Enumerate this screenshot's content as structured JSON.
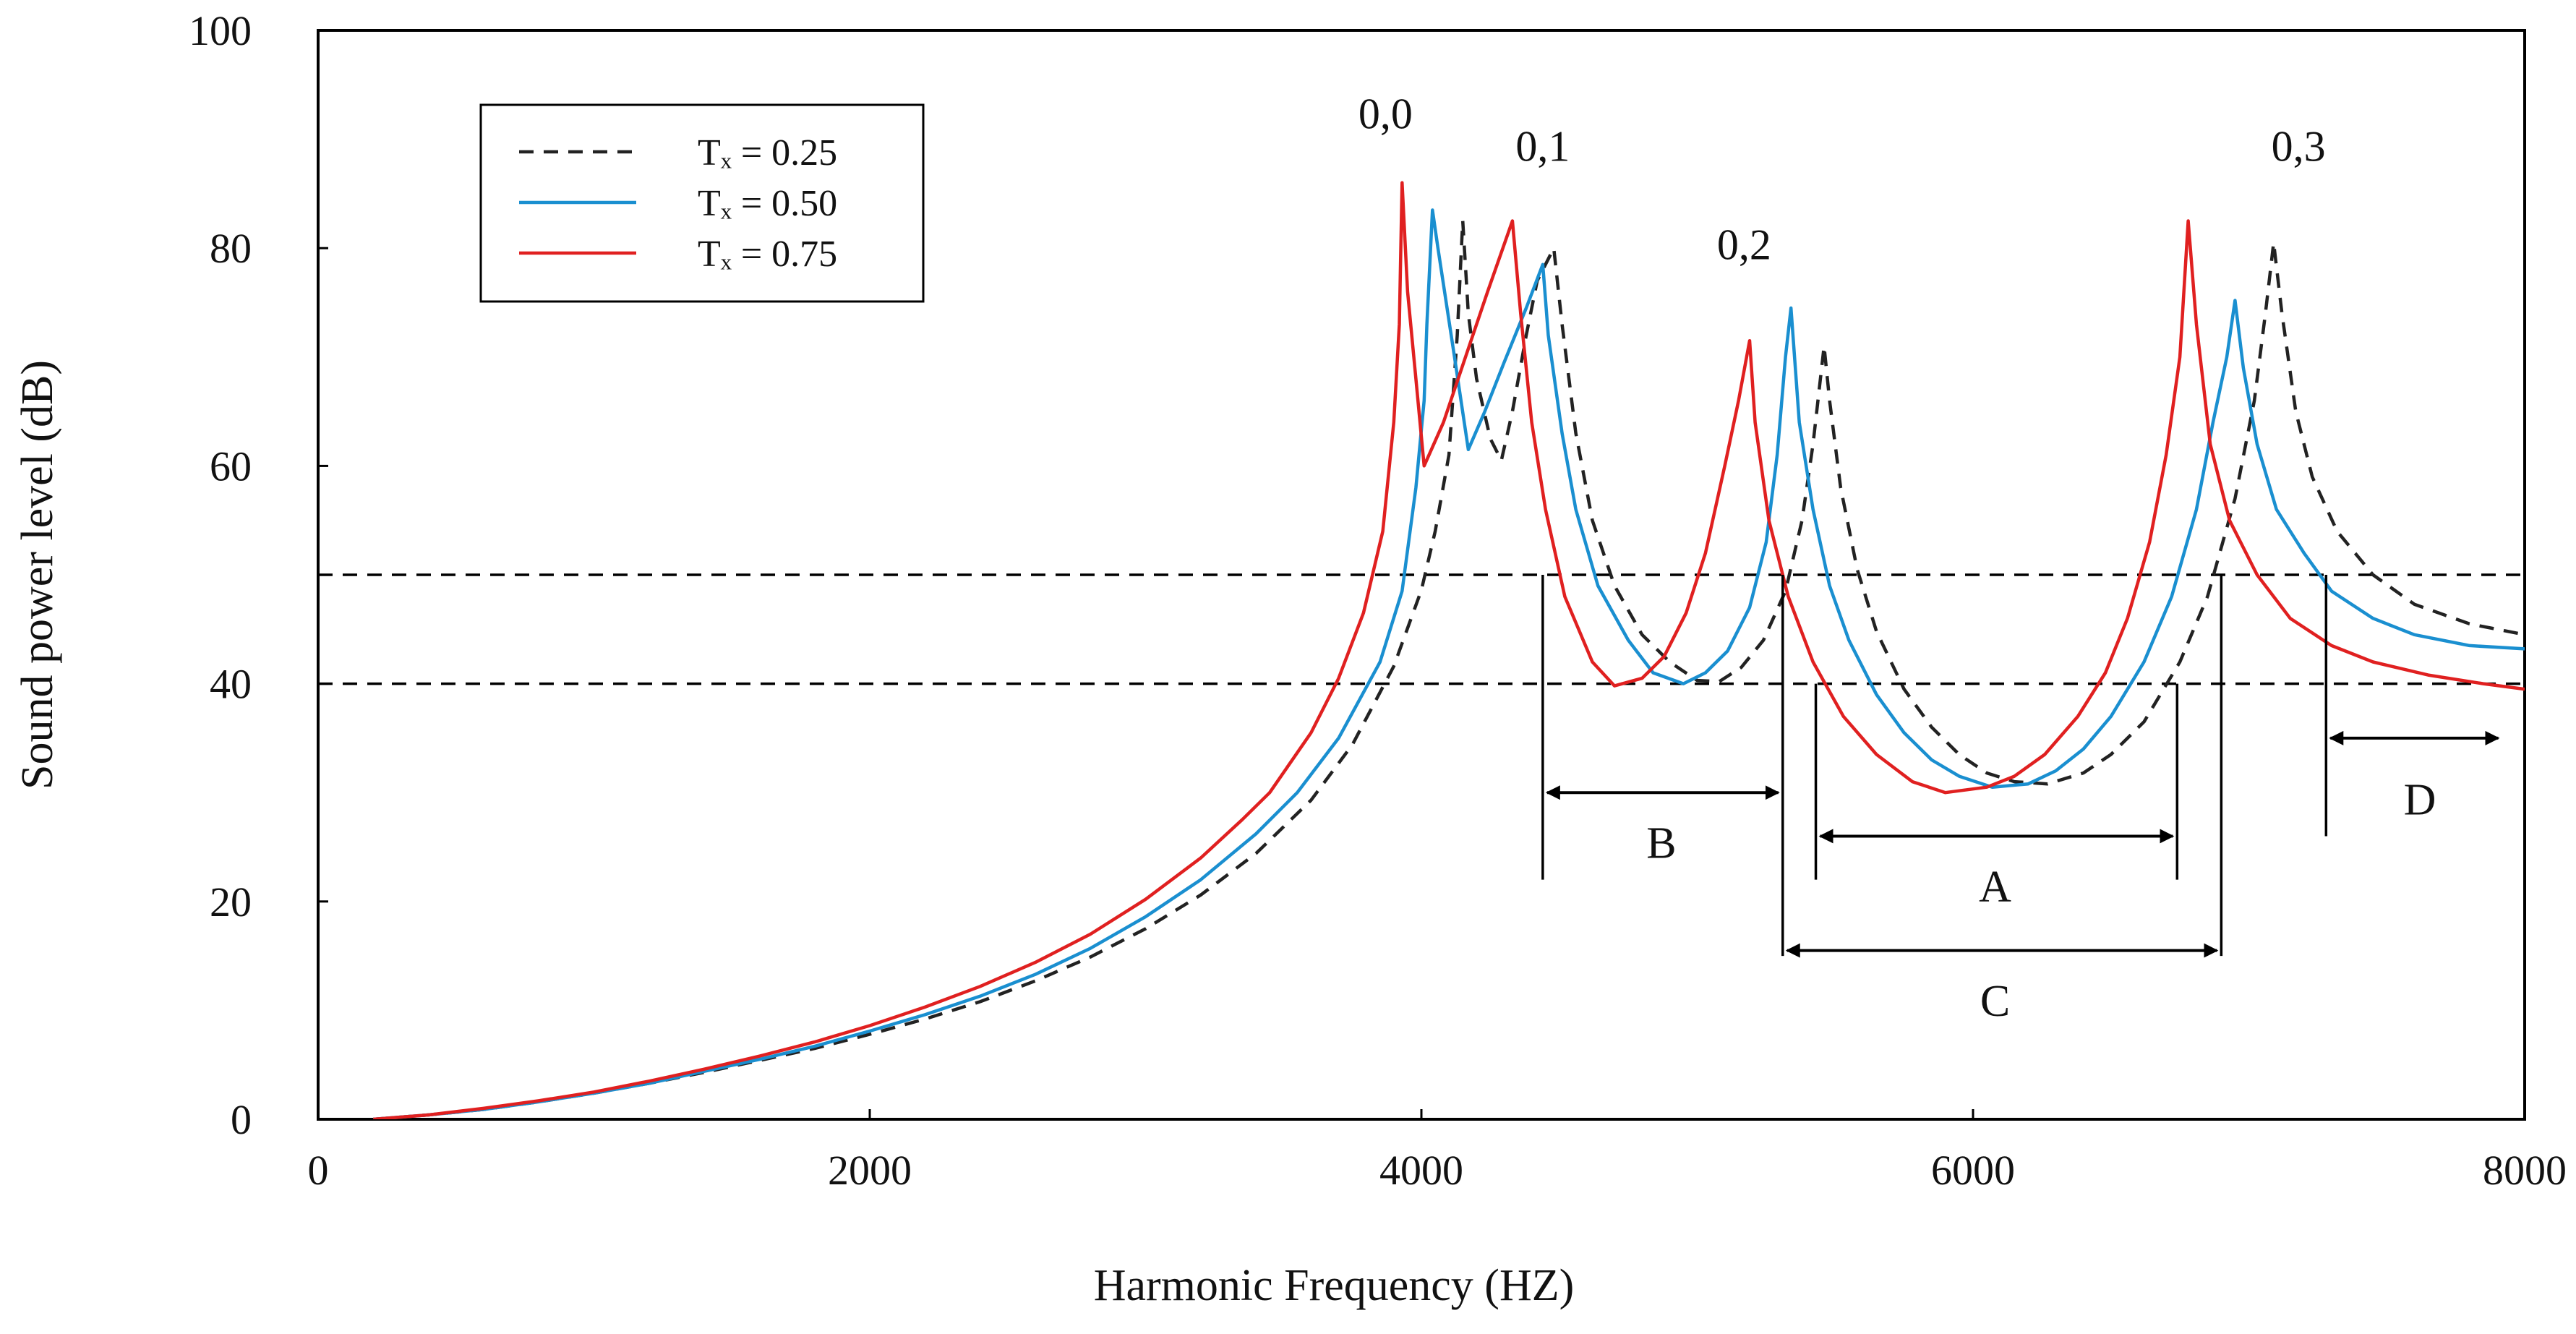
{
  "chart_data": {
    "type": "line",
    "title": "",
    "xlabel": "Harmonic Frequency (HZ)",
    "ylabel": "Sound power level (dB)",
    "xlim": [
      0,
      8000
    ],
    "ylim": [
      0,
      100
    ],
    "x_ticks": [
      0,
      2000,
      4000,
      6000,
      8000
    ],
    "y_ticks": [
      0,
      20,
      40,
      60,
      80,
      100
    ],
    "x_tick_labels": [
      "0",
      "2000",
      "4000",
      "6000",
      "8000"
    ],
    "y_tick_labels": [
      "0",
      "20",
      "40",
      "60",
      "80",
      "100"
    ],
    "grid": false,
    "legend_position": "top-left",
    "series": [
      {
        "name": "Tx = 0.25",
        "legend_label": "Tₓ = 0.25",
        "color": "#222222",
        "style": "dashed",
        "points": [
          [
            200,
            0
          ],
          [
            400,
            0.4
          ],
          [
            600,
            0.9
          ],
          [
            800,
            1.6
          ],
          [
            1000,
            2.4
          ],
          [
            1200,
            3.3
          ],
          [
            1400,
            4.3
          ],
          [
            1600,
            5.4
          ],
          [
            1800,
            6.5
          ],
          [
            2000,
            7.8
          ],
          [
            2200,
            9.2
          ],
          [
            2400,
            10.8
          ],
          [
            2600,
            12.7
          ],
          [
            2800,
            14.9
          ],
          [
            3000,
            17.5
          ],
          [
            3200,
            20.6
          ],
          [
            3400,
            24.4
          ],
          [
            3600,
            29.3
          ],
          [
            3750,
            34.4
          ],
          [
            3900,
            41.6
          ],
          [
            4000,
            48.6
          ],
          [
            4050,
            54
          ],
          [
            4100,
            61
          ],
          [
            4130,
            72
          ],
          [
            4150,
            82.5
          ],
          [
            4170,
            74
          ],
          [
            4200,
            68
          ],
          [
            4250,
            62.5
          ],
          [
            4290,
            60.5
          ],
          [
            4330,
            65
          ],
          [
            4380,
            72
          ],
          [
            4420,
            77
          ],
          [
            4480,
            80
          ],
          [
            4510,
            73
          ],
          [
            4560,
            63
          ],
          [
            4620,
            55
          ],
          [
            4700,
            49
          ],
          [
            4800,
            44.5
          ],
          [
            4900,
            42
          ],
          [
            5000,
            40.3
          ],
          [
            5080,
            40.2
          ],
          [
            5160,
            41.5
          ],
          [
            5240,
            44
          ],
          [
            5320,
            48.5
          ],
          [
            5380,
            55
          ],
          [
            5420,
            62
          ],
          [
            5460,
            71
          ],
          [
            5480,
            66
          ],
          [
            5520,
            58
          ],
          [
            5580,
            50.5
          ],
          [
            5650,
            44.8
          ],
          [
            5750,
            39.5
          ],
          [
            5850,
            36
          ],
          [
            5950,
            33.5
          ],
          [
            6050,
            31.8
          ],
          [
            6150,
            31
          ],
          [
            6270,
            30.8
          ],
          [
            6400,
            31.8
          ],
          [
            6500,
            33.5
          ],
          [
            6620,
            36.5
          ],
          [
            6750,
            42
          ],
          [
            6850,
            48
          ],
          [
            6950,
            57
          ],
          [
            7020,
            66
          ],
          [
            7060,
            74
          ],
          [
            7090,
            80.5
          ],
          [
            7120,
            74
          ],
          [
            7170,
            65
          ],
          [
            7230,
            59
          ],
          [
            7320,
            54
          ],
          [
            7450,
            50
          ],
          [
            7600,
            47.3
          ],
          [
            7800,
            45.5
          ],
          [
            8000,
            44.5
          ]
        ]
      },
      {
        "name": "Tx = 0.50",
        "legend_label": "Tₓ = 0.50",
        "color": "#1a8fd0",
        "style": "solid",
        "points": [
          [
            200,
            0
          ],
          [
            400,
            0.4
          ],
          [
            600,
            0.9
          ],
          [
            800,
            1.6
          ],
          [
            1000,
            2.4
          ],
          [
            1200,
            3.3
          ],
          [
            1400,
            4.4
          ],
          [
            1600,
            5.5
          ],
          [
            1800,
            6.7
          ],
          [
            2000,
            8.1
          ],
          [
            2200,
            9.6
          ],
          [
            2400,
            11.3
          ],
          [
            2600,
            13.3
          ],
          [
            2800,
            15.7
          ],
          [
            3000,
            18.6
          ],
          [
            3200,
            22
          ],
          [
            3400,
            26.2
          ],
          [
            3550,
            30
          ],
          [
            3700,
            35
          ],
          [
            3850,
            42
          ],
          [
            3930,
            48.5
          ],
          [
            3980,
            58
          ],
          [
            4010,
            66
          ],
          [
            4020,
            73
          ],
          [
            4040,
            83.5
          ],
          [
            4060,
            80
          ],
          [
            4120,
            70
          ],
          [
            4170,
            61.5
          ],
          [
            4230,
            65
          ],
          [
            4300,
            69.5
          ],
          [
            4380,
            74.5
          ],
          [
            4440,
            78.5
          ],
          [
            4460,
            72
          ],
          [
            4510,
            63
          ],
          [
            4560,
            56
          ],
          [
            4640,
            49
          ],
          [
            4750,
            44
          ],
          [
            4840,
            41
          ],
          [
            4950,
            40
          ],
          [
            5030,
            41
          ],
          [
            5110,
            43
          ],
          [
            5190,
            47
          ],
          [
            5250,
            53
          ],
          [
            5290,
            61
          ],
          [
            5320,
            70
          ],
          [
            5340,
            74.5
          ],
          [
            5370,
            64
          ],
          [
            5420,
            56
          ],
          [
            5480,
            49
          ],
          [
            5550,
            44
          ],
          [
            5650,
            39
          ],
          [
            5750,
            35.5
          ],
          [
            5850,
            33
          ],
          [
            5950,
            31.5
          ],
          [
            6070,
            30.5
          ],
          [
            6200,
            30.8
          ],
          [
            6300,
            32
          ],
          [
            6400,
            34
          ],
          [
            6500,
            37
          ],
          [
            6620,
            42
          ],
          [
            6720,
            48
          ],
          [
            6810,
            56
          ],
          [
            6870,
            64
          ],
          [
            6920,
            70
          ],
          [
            6950,
            75.2
          ],
          [
            6980,
            69
          ],
          [
            7030,
            62
          ],
          [
            7100,
            56
          ],
          [
            7200,
            52
          ],
          [
            7300,
            48.5
          ],
          [
            7450,
            46
          ],
          [
            7600,
            44.5
          ],
          [
            7800,
            43.5
          ],
          [
            8000,
            43.2
          ]
        ]
      },
      {
        "name": "Tx = 0.75",
        "legend_label": "Tₓ = 0.75",
        "color": "#e02020",
        "style": "solid",
        "points": [
          [
            200,
            0
          ],
          [
            400,
            0.4
          ],
          [
            600,
            1
          ],
          [
            800,
            1.7
          ],
          [
            1000,
            2.5
          ],
          [
            1200,
            3.5
          ],
          [
            1400,
            4.6
          ],
          [
            1600,
            5.8
          ],
          [
            1800,
            7.1
          ],
          [
            2000,
            8.6
          ],
          [
            2200,
            10.3
          ],
          [
            2400,
            12.2
          ],
          [
            2600,
            14.4
          ],
          [
            2800,
            17
          ],
          [
            3000,
            20.2
          ],
          [
            3200,
            24
          ],
          [
            3350,
            27.5
          ],
          [
            3450,
            30
          ],
          [
            3600,
            35.5
          ],
          [
            3700,
            40.5
          ],
          [
            3790,
            46.5
          ],
          [
            3860,
            54
          ],
          [
            3900,
            64
          ],
          [
            3920,
            73
          ],
          [
            3930,
            86
          ],
          [
            3950,
            76
          ],
          [
            3980,
            68
          ],
          [
            4010,
            60
          ],
          [
            4080,
            64
          ],
          [
            4160,
            70
          ],
          [
            4240,
            76
          ],
          [
            4330,
            82.5
          ],
          [
            4360,
            74
          ],
          [
            4400,
            64
          ],
          [
            4450,
            56
          ],
          [
            4520,
            48
          ],
          [
            4620,
            42
          ],
          [
            4700,
            39.8
          ],
          [
            4800,
            40.5
          ],
          [
            4880,
            42.5
          ],
          [
            4960,
            46.5
          ],
          [
            5030,
            52
          ],
          [
            5100,
            60
          ],
          [
            5150,
            66
          ],
          [
            5190,
            71.5
          ],
          [
            5210,
            64
          ],
          [
            5260,
            55
          ],
          [
            5330,
            48
          ],
          [
            5420,
            42
          ],
          [
            5530,
            37
          ],
          [
            5650,
            33.5
          ],
          [
            5780,
            31
          ],
          [
            5900,
            30
          ],
          [
            6050,
            30.5
          ],
          [
            6150,
            31.5
          ],
          [
            6260,
            33.5
          ],
          [
            6380,
            37
          ],
          [
            6480,
            41
          ],
          [
            6560,
            46
          ],
          [
            6640,
            53
          ],
          [
            6700,
            61
          ],
          [
            6750,
            70
          ],
          [
            6780,
            82.5
          ],
          [
            6810,
            73
          ],
          [
            6860,
            62
          ],
          [
            6930,
            55
          ],
          [
            7030,
            50
          ],
          [
            7150,
            46
          ],
          [
            7300,
            43.5
          ],
          [
            7450,
            42
          ],
          [
            7650,
            40.8
          ],
          [
            7850,
            40
          ],
          [
            8000,
            39.5
          ]
        ]
      }
    ],
    "reference_lines": [
      {
        "y": 50,
        "style": "dashed"
      },
      {
        "y": 40,
        "style": "dashed"
      }
    ],
    "peak_labels": [
      {
        "text": "0,0",
        "x": 3870,
        "y": 91
      },
      {
        "text": "0,1",
        "x": 4440,
        "y": 88
      },
      {
        "text": "0,2",
        "x": 5170,
        "y": 79
      },
      {
        "text": "0,3",
        "x": 7180,
        "y": 88
      }
    ],
    "ranges": [
      {
        "label": "B",
        "x1": 4440,
        "x2": 5310,
        "y_arrow": 30,
        "y_label": 24,
        "x_label": 4870,
        "v_lines": [
          [
            4440,
            22,
            50
          ],
          [
            5310,
            22,
            50
          ]
        ]
      },
      {
        "label": "A",
        "x1": 5430,
        "x2": 6740,
        "y_arrow": 26,
        "y_label": 20,
        "x_label": 6080,
        "v_lines": [
          [
            5430,
            22,
            40
          ],
          [
            6740,
            22,
            40
          ]
        ]
      },
      {
        "label": "C",
        "x1": 5310,
        "x2": 6900,
        "y_arrow": 15.5,
        "y_label": 9.5,
        "x_label": 6080,
        "v_lines": [
          [
            5310,
            15,
            50
          ],
          [
            6900,
            15,
            50
          ]
        ]
      },
      {
        "label": "D",
        "x1": 7280,
        "x2": 7920,
        "y_arrow": 35,
        "y_label": 28,
        "x_label": 7620,
        "v_lines": [
          [
            7280,
            26,
            50
          ]
        ]
      }
    ]
  }
}
